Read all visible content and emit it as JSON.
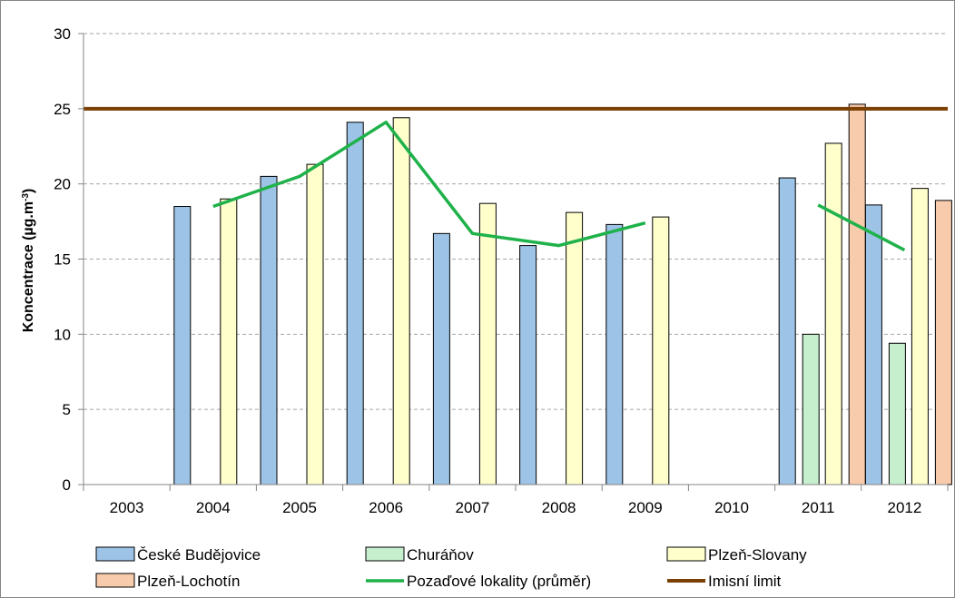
{
  "chart_data": {
    "type": "bar",
    "title": "",
    "xlabel": "",
    "ylabel": "Koncentrace (µg.m",
    "ylabel_sup": "-3",
    "ylabel_close": ")",
    "ylim": [
      0,
      30
    ],
    "yticks": [
      0,
      5,
      10,
      15,
      20,
      25,
      30
    ],
    "grid": true,
    "legend_position": "bottom",
    "categories": [
      "2003",
      "2004",
      "2005",
      "2006",
      "2007",
      "2008",
      "2009",
      "2010",
      "2011",
      "2012"
    ],
    "series": [
      {
        "name": "České Budějovice",
        "type": "bar",
        "color": "#9dc3e6",
        "values": [
          null,
          18.5,
          20.5,
          24.1,
          16.7,
          15.9,
          17.3,
          null,
          20.4,
          18.6
        ]
      },
      {
        "name": "Churáňov",
        "type": "bar",
        "color": "#c6efce",
        "values": [
          null,
          null,
          null,
          null,
          null,
          null,
          null,
          null,
          10.0,
          9.4
        ]
      },
      {
        "name": "Plzeň-Slovany",
        "type": "bar",
        "color": "#ffffcc",
        "values": [
          null,
          19.0,
          21.3,
          24.4,
          18.7,
          18.1,
          17.8,
          null,
          22.7,
          19.7
        ]
      },
      {
        "name": "Plzeň-Lochotín",
        "type": "bar",
        "color": "#f8cbad",
        "values": [
          null,
          null,
          null,
          null,
          null,
          null,
          null,
          null,
          25.3,
          18.9
        ]
      },
      {
        "name": "Pozaďové lokality (průměr)",
        "type": "line",
        "color": "#1fb24a",
        "values": [
          null,
          18.5,
          20.5,
          24.1,
          16.7,
          15.9,
          17.4,
          null,
          18.6,
          15.6
        ]
      },
      {
        "name": "Imisní limit",
        "type": "hline",
        "color": "#7b3f00",
        "value": 25
      }
    ]
  }
}
